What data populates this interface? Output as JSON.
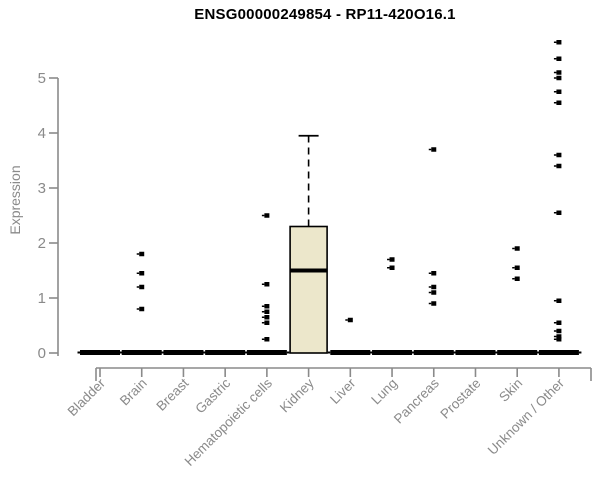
{
  "header": {
    "title": "ENSG00000249854 - RP11-420O16.1"
  },
  "chart_data": {
    "type": "boxplot",
    "title": "ENSG00000249854 - RP11-420O16.1",
    "xlabel": "",
    "ylabel": "Expression",
    "ylim": [
      0,
      5.7
    ],
    "yticks": [
      0,
      1,
      2,
      3,
      4,
      5
    ],
    "grid": false,
    "legend": "none",
    "categories": [
      "Bladder",
      "Brain",
      "Breast",
      "Gastric",
      "Hematopoietic cells",
      "Kidney",
      "Liver",
      "Lung",
      "Pancreas",
      "Prostate",
      "Skin",
      "Unknown / Other"
    ],
    "colors": {
      "box_fill": "#ECE7CB",
      "box_border": "#000000",
      "median": "#000000",
      "point": "#000000",
      "zero_bar": "#000000",
      "axis": "#8a8a8a",
      "tick_label": "#8a8a8a",
      "title": "#000000"
    },
    "series": [
      {
        "name": "Bladder",
        "q1": 0,
        "median": 0,
        "q3": 0,
        "whisker_low": 0,
        "whisker_high": 0,
        "outliers": []
      },
      {
        "name": "Brain",
        "q1": 0,
        "median": 0,
        "q3": 0,
        "whisker_low": 0,
        "whisker_high": 0,
        "outliers": [
          1.8,
          1.45,
          1.2,
          0.8
        ]
      },
      {
        "name": "Breast",
        "q1": 0,
        "median": 0,
        "q3": 0,
        "whisker_low": 0,
        "whisker_high": 0,
        "outliers": []
      },
      {
        "name": "Gastric",
        "q1": 0,
        "median": 0,
        "q3": 0,
        "whisker_low": 0,
        "whisker_high": 0,
        "outliers": []
      },
      {
        "name": "Hematopoietic cells",
        "q1": 0,
        "median": 0,
        "q3": 0,
        "whisker_low": 0,
        "whisker_high": 0,
        "outliers": [
          2.5,
          1.25,
          0.85,
          0.75,
          0.65,
          0.55,
          0.25
        ]
      },
      {
        "name": "Kidney",
        "q1": 0,
        "median": 1.5,
        "q3": 2.3,
        "whisker_low": 0,
        "whisker_high": 3.95,
        "outliers": []
      },
      {
        "name": "Liver",
        "q1": 0,
        "median": 0,
        "q3": 0,
        "whisker_low": 0,
        "whisker_high": 0,
        "outliers": [
          0.6
        ]
      },
      {
        "name": "Lung",
        "q1": 0,
        "median": 0,
        "q3": 0,
        "whisker_low": 0,
        "whisker_high": 0,
        "outliers": [
          1.7,
          1.55
        ]
      },
      {
        "name": "Pancreas",
        "q1": 0,
        "median": 0,
        "q3": 0,
        "whisker_low": 0,
        "whisker_high": 0,
        "outliers": [
          3.7,
          1.45,
          1.2,
          1.1,
          0.9
        ]
      },
      {
        "name": "Prostate",
        "q1": 0,
        "median": 0,
        "q3": 0,
        "whisker_low": 0,
        "whisker_high": 0,
        "outliers": []
      },
      {
        "name": "Skin",
        "q1": 0,
        "median": 0,
        "q3": 0,
        "whisker_low": 0,
        "whisker_high": 0,
        "outliers": [
          1.9,
          1.55,
          1.35
        ]
      },
      {
        "name": "Unknown / Other",
        "q1": 0,
        "median": 0,
        "q3": 0,
        "whisker_low": 0,
        "whisker_high": 0,
        "outliers": [
          5.65,
          5.35,
          5.1,
          5.0,
          4.75,
          4.55,
          3.6,
          3.4,
          2.55,
          0.95,
          0.55,
          0.4,
          0.3,
          0.25
        ]
      }
    ]
  }
}
